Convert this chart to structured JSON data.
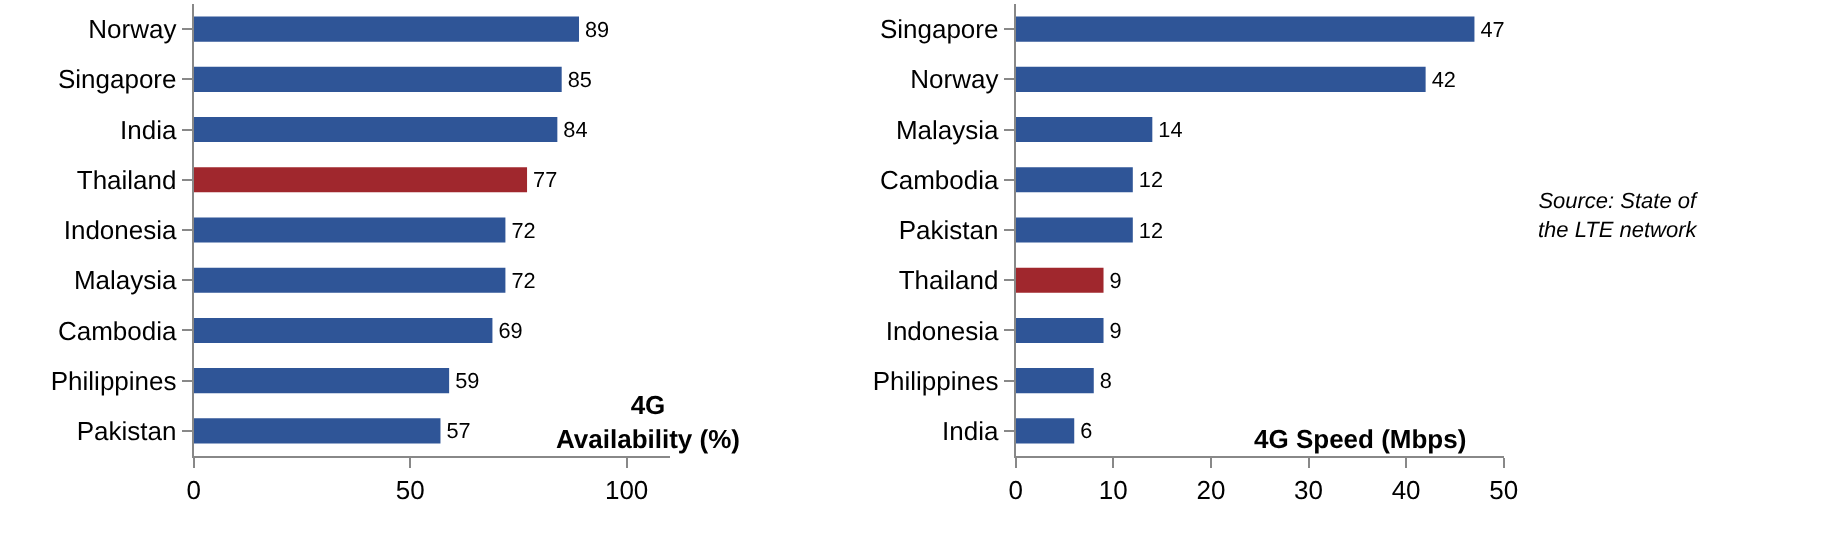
{
  "chart_data": [
    {
      "type": "bar",
      "orientation": "horizontal",
      "title": "4G Availability (%)",
      "categories": [
        "Norway",
        "Singapore",
        "India",
        "Thailand",
        "Indonesia",
        "Malaysia",
        "Cambodia",
        "Philippines",
        "Pakistan"
      ],
      "values": [
        89,
        85,
        84,
        77,
        72,
        72,
        69,
        59,
        57
      ],
      "colors": [
        "#2f5597",
        "#2f5597",
        "#2f5597",
        "#a0272d",
        "#2f5597",
        "#2f5597",
        "#2f5597",
        "#2f5597",
        "#2f5597"
      ],
      "xlim": [
        0,
        110
      ],
      "xticks": [
        0,
        50,
        100
      ],
      "data_labels": true
    },
    {
      "type": "bar",
      "orientation": "horizontal",
      "title": "4G Speed (Mbps)",
      "categories": [
        "Singapore",
        "Norway",
        "Malaysia",
        "Cambodia",
        "Pakistan",
        "Thailand",
        "Indonesia",
        "Philippines",
        "India"
      ],
      "values": [
        47,
        42,
        14,
        12,
        12,
        9,
        9,
        8,
        6
      ],
      "colors": [
        "#2f5597",
        "#2f5597",
        "#2f5597",
        "#2f5597",
        "#2f5597",
        "#a0272d",
        "#2f5597",
        "#2f5597",
        "#2f5597"
      ],
      "xlim": [
        0,
        50
      ],
      "xticks": [
        0,
        10,
        20,
        30,
        40,
        50
      ],
      "data_labels": true,
      "annotations": [
        "Source: State of the LTE network"
      ]
    }
  ]
}
